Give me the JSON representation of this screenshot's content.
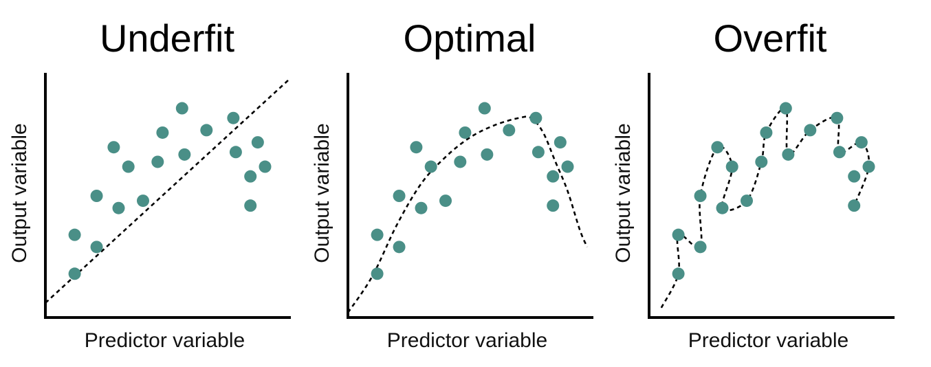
{
  "chart_data": [
    {
      "type": "scatter",
      "title": "Underfit",
      "xlabel": "Predictor variable",
      "ylabel": "Output variable",
      "xlim": [
        0,
        10
      ],
      "ylim": [
        0,
        10
      ],
      "grid": false,
      "point_color": "#4a8f87",
      "fit": "linear",
      "points": [
        [
          1.2,
          1.8
        ],
        [
          1.2,
          3.4
        ],
        [
          2.1,
          2.9
        ],
        [
          2.1,
          5.0
        ],
        [
          2.8,
          7.0
        ],
        [
          3.0,
          4.5
        ],
        [
          3.4,
          6.2
        ],
        [
          4.0,
          4.8
        ],
        [
          4.6,
          6.4
        ],
        [
          4.8,
          7.6
        ],
        [
          5.6,
          8.6
        ],
        [
          5.7,
          6.7
        ],
        [
          6.6,
          7.7
        ],
        [
          7.7,
          8.2
        ],
        [
          7.8,
          6.8
        ],
        [
          8.4,
          5.8
        ],
        [
          8.4,
          4.6
        ],
        [
          8.7,
          7.2
        ],
        [
          9.0,
          6.2
        ]
      ],
      "fit_curve": [
        [
          0,
          0.6
        ],
        [
          10,
          9.8
        ]
      ]
    },
    {
      "type": "scatter",
      "title": "Optimal",
      "xlabel": "Predictor variable",
      "ylabel": "Output variable",
      "xlim": [
        0,
        10
      ],
      "ylim": [
        0,
        10
      ],
      "grid": false,
      "point_color": "#4a8f87",
      "fit": "quadratic",
      "points": [
        [
          1.2,
          1.8
        ],
        [
          1.2,
          3.4
        ],
        [
          2.1,
          2.9
        ],
        [
          2.1,
          5.0
        ],
        [
          2.8,
          7.0
        ],
        [
          3.0,
          4.5
        ],
        [
          3.4,
          6.2
        ],
        [
          4.0,
          4.8
        ],
        [
          4.6,
          6.4
        ],
        [
          4.8,
          7.6
        ],
        [
          5.6,
          8.6
        ],
        [
          5.7,
          6.7
        ],
        [
          6.6,
          7.7
        ],
        [
          7.7,
          8.2
        ],
        [
          7.8,
          6.8
        ],
        [
          8.4,
          5.8
        ],
        [
          8.4,
          4.6
        ],
        [
          8.7,
          7.2
        ],
        [
          9.0,
          6.2
        ]
      ],
      "fit_curve": [
        [
          0,
          0.2
        ],
        [
          1,
          1.7
        ],
        [
          2,
          3.8
        ],
        [
          3,
          5.5
        ],
        [
          4,
          6.6
        ],
        [
          5,
          7.4
        ],
        [
          6,
          7.9
        ],
        [
          7,
          8.2
        ],
        [
          7.5,
          8.2
        ],
        [
          8,
          7.6
        ],
        [
          8.5,
          6.4
        ],
        [
          9,
          5.2
        ],
        [
          9.5,
          3.6
        ],
        [
          9.8,
          2.9
        ]
      ]
    },
    {
      "type": "scatter",
      "title": "Overfit",
      "xlabel": "Predictor variable",
      "ylabel": "Output variable",
      "xlim": [
        0,
        10
      ],
      "ylim": [
        0,
        10
      ],
      "grid": false,
      "point_color": "#4a8f87",
      "fit": "interpolating",
      "points": [
        [
          1.2,
          1.8
        ],
        [
          1.2,
          3.4
        ],
        [
          2.1,
          2.9
        ],
        [
          2.1,
          5.0
        ],
        [
          2.8,
          7.0
        ],
        [
          3.0,
          4.5
        ],
        [
          3.4,
          6.2
        ],
        [
          4.0,
          4.8
        ],
        [
          4.6,
          6.4
        ],
        [
          4.8,
          7.6
        ],
        [
          5.6,
          8.6
        ],
        [
          5.7,
          6.7
        ],
        [
          6.6,
          7.7
        ],
        [
          7.7,
          8.2
        ],
        [
          7.8,
          6.8
        ],
        [
          8.4,
          5.8
        ],
        [
          8.4,
          4.6
        ],
        [
          8.7,
          7.2
        ],
        [
          9.0,
          6.2
        ]
      ],
      "fit_curve": [
        [
          0.5,
          0.4
        ],
        [
          1.2,
          1.8
        ],
        [
          1.2,
          3.4
        ],
        [
          2.1,
          2.9
        ],
        [
          2.1,
          5.0
        ],
        [
          2.8,
          7.0
        ],
        [
          3.4,
          6.2
        ],
        [
          3.0,
          4.5
        ],
        [
          4.0,
          4.8
        ],
        [
          4.6,
          6.4
        ],
        [
          4.8,
          7.6
        ],
        [
          5.6,
          8.6
        ],
        [
          5.7,
          6.7
        ],
        [
          6.6,
          7.7
        ],
        [
          7.7,
          8.2
        ],
        [
          7.8,
          6.8
        ],
        [
          8.7,
          7.2
        ],
        [
          9.0,
          6.2
        ],
        [
          8.4,
          4.6
        ]
      ]
    }
  ]
}
